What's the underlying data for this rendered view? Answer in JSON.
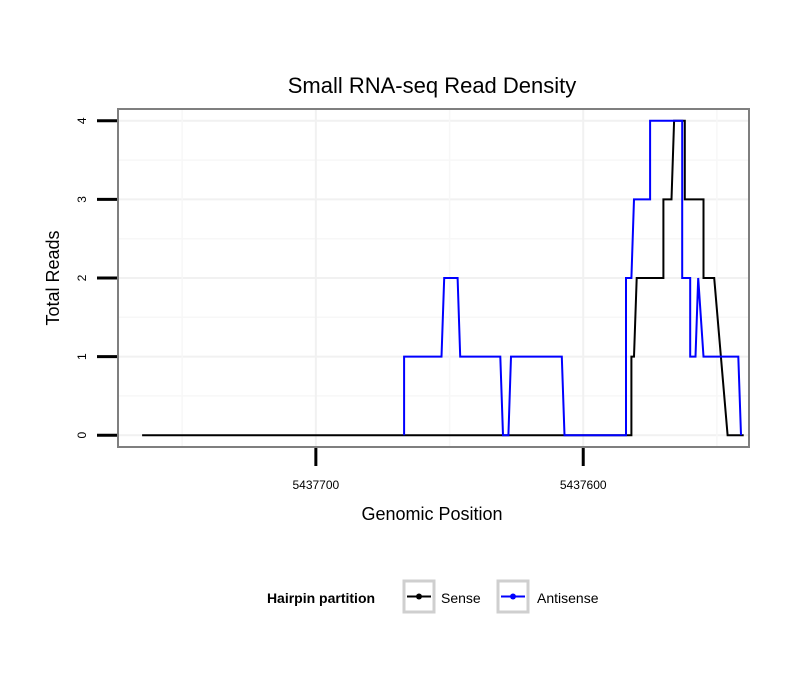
{
  "chart_data": {
    "type": "line",
    "title": "Small RNA-seq Read Density",
    "xlabel": "Genomic Position",
    "ylabel": "Total Reads",
    "x_reversed": true,
    "xlim": [
      5437774,
      5437538
    ],
    "ylim": [
      -0.15,
      4.15
    ],
    "x_ticks": [
      5437700,
      5437600
    ],
    "x_tick_labels": [
      "5437700",
      "5437600"
    ],
    "y_ticks": [
      0,
      1,
      2,
      3,
      4
    ],
    "y_tick_labels": [
      "0",
      "1",
      "2",
      "3",
      "4"
    ],
    "grid": true,
    "legend": {
      "title": "Hairpin partition",
      "position": "bottom"
    },
    "series": [
      {
        "name": "Sense",
        "color": "#000000",
        "x": [
          5437765,
          5437584,
          5437582,
          5437582,
          5437581,
          5437580,
          5437579,
          5437579,
          5437570,
          5437570,
          5437567,
          5437567,
          5437566,
          5437565,
          5437565,
          5437562,
          5437562,
          5437555,
          5437555,
          5437553,
          5437553,
          5437551,
          5437546,
          5437546,
          5437540
        ],
        "values": [
          0,
          0,
          0,
          1,
          1,
          2,
          2,
          2,
          2,
          3,
          3,
          3,
          4,
          4,
          4,
          4,
          3,
          3,
          2,
          2,
          2,
          2,
          0,
          0,
          0
        ]
      },
      {
        "name": "Antisense",
        "color": "#0000ff",
        "x": [
          5437667,
          5437667,
          5437653,
          5437652,
          5437647,
          5437646,
          5437631,
          5437630,
          5437628,
          5437627,
          5437608,
          5437607,
          5437584,
          5437584,
          5437582,
          5437582,
          5437581,
          5437580,
          5437575,
          5437575,
          5437574,
          5437563,
          5437563,
          5437560,
          5437560,
          5437558,
          5437557,
          5437555,
          5437555,
          5437542,
          5437541
        ],
        "values": [
          0,
          1,
          1,
          2,
          2,
          1,
          1,
          0,
          0,
          1,
          1,
          0,
          0,
          2,
          2,
          2,
          3,
          3,
          3,
          4,
          4,
          4,
          2,
          2,
          1,
          1,
          2,
          1,
          1,
          1,
          0
        ]
      }
    ]
  }
}
